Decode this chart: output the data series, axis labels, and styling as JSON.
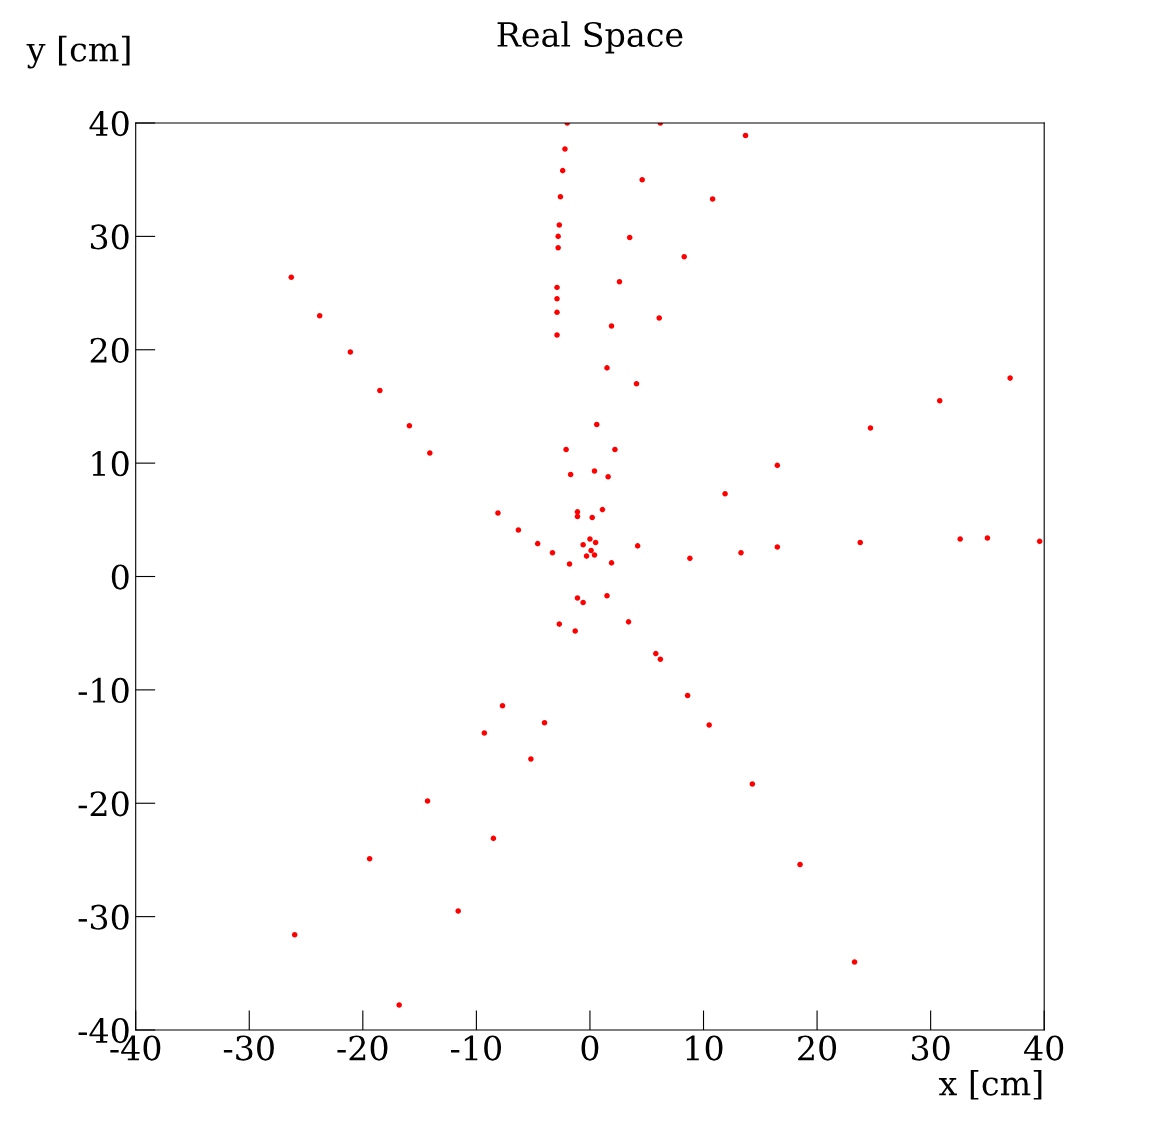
{
  "chart_data": {
    "type": "scatter",
    "title": "Real Space",
    "xlabel": "x [cm]",
    "ylabel": "y [cm]",
    "xlim": [
      -40,
      40
    ],
    "ylim": [
      -40,
      40
    ],
    "xticks": [
      -40,
      -30,
      -20,
      -10,
      0,
      10,
      20,
      30,
      40
    ],
    "yticks": [
      -40,
      -30,
      -20,
      -10,
      0,
      10,
      20,
      30,
      40
    ],
    "grid": false,
    "marker": "circle",
    "series": [
      {
        "color": "#ff0000",
        "x": [
          -26.3,
          -23.8,
          -21.1,
          -18.5,
          -15.9,
          -14.1,
          -2.0,
          -2.2,
          -2.4,
          -2.6,
          -2.7,
          -2.8,
          -2.8,
          -2.9,
          -2.9,
          -2.9,
          -2.9,
          6.2,
          4.6,
          3.5,
          2.6,
          1.9,
          1.5,
          13.7,
          10.8,
          8.3,
          6.1,
          4.1,
          16.5,
          24.7,
          30.8,
          37.0,
          16.5,
          23.8,
          32.6,
          35.0,
          39.6,
          -26.0,
          -19.4,
          -14.3,
          -9.3,
          -16.8,
          -11.6,
          -8.5,
          -5.2,
          10.5,
          14.3,
          18.5,
          23.3,
          -7.7,
          -4.0,
          8.6,
          0.6,
          -2.1,
          2.2,
          -1.7,
          0.4,
          1.6,
          11.9,
          -8.1,
          -1.1,
          -1.1,
          1.1,
          0.2,
          -6.3,
          -4.6,
          -3.3,
          0.0,
          0.5,
          -0.6,
          0.1,
          -0.3,
          0.4,
          4.2,
          8.8,
          13.3,
          -1.8,
          1.9,
          -1.1,
          -0.6,
          1.5,
          -2.7,
          -1.3,
          3.4,
          5.8,
          6.2
        ],
        "values": [
          26.4,
          23.0,
          19.8,
          16.4,
          13.3,
          10.9,
          40.0,
          37.7,
          35.8,
          33.5,
          31.0,
          30.0,
          29.0,
          25.5,
          24.5,
          23.3,
          21.3,
          40.0,
          35.0,
          29.9,
          26.0,
          22.1,
          18.4,
          38.9,
          33.3,
          28.2,
          22.8,
          17.0,
          9.8,
          13.1,
          15.5,
          17.5,
          2.6,
          3.0,
          3.3,
          3.4,
          3.1,
          -31.6,
          -24.9,
          -19.8,
          -13.8,
          -37.8,
          -29.5,
          -23.1,
          -16.1,
          -13.1,
          -18.3,
          -25.4,
          -34.0,
          -11.4,
          -12.9,
          -10.5,
          13.4,
          11.2,
          11.2,
          9.0,
          9.3,
          8.8,
          7.3,
          5.6,
          5.7,
          5.3,
          5.9,
          5.2,
          4.1,
          2.9,
          2.1,
          3.3,
          3.0,
          2.8,
          2.3,
          1.8,
          1.9,
          2.7,
          1.6,
          2.1,
          1.1,
          1.2,
          -1.9,
          -2.3,
          -1.7,
          -4.2,
          -4.8,
          -4.0,
          -6.8,
          -7.3
        ]
      }
    ]
  }
}
